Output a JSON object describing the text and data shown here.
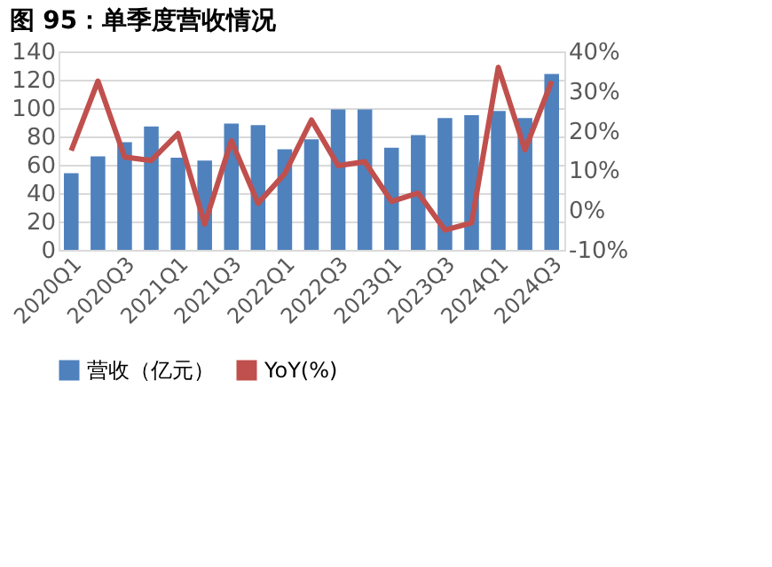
{
  "chart_data": {
    "type": "bar",
    "title": "图 95：单季度营收情况",
    "categories": [
      "2020Q1",
      null,
      "2020Q3",
      null,
      "2021Q1",
      null,
      "2021Q3",
      null,
      "2022Q1",
      null,
      "2022Q3",
      null,
      "2023Q1",
      null,
      "2023Q3",
      null,
      "2024Q1",
      null,
      "2024Q3"
    ],
    "series": [
      {
        "name": "营收（亿元）",
        "color": "#4f81bd",
        "values": [
          54,
          66,
          76,
          87,
          65,
          63,
          89,
          88,
          71,
          78,
          99,
          99,
          72,
          81,
          93,
          95,
          98,
          93,
          124
        ]
      },
      {
        "name": "YoY(%)",
        "type": "line",
        "axis": "y2",
        "color": "#c0504d",
        "values": [
          15,
          32.5,
          13.4,
          12.5,
          19.3,
          -3.5,
          17.5,
          1.7,
          9.2,
          22.7,
          11.2,
          12.2,
          2.2,
          4.3,
          -5,
          -3.2,
          36,
          15.2,
          32.5
        ]
      }
    ],
    "ylim": [
      0,
      140
    ],
    "yticks": [
      0,
      20,
      40,
      60,
      80,
      100,
      120,
      140
    ],
    "y2lim": [
      -10,
      40
    ],
    "y2ticks": [
      {
        "value": -10,
        "label": "-10%"
      },
      {
        "value": 0,
        "label": "0%"
      },
      {
        "value": 10,
        "label": "10%"
      },
      {
        "value": 20,
        "label": "20%"
      },
      {
        "value": 30,
        "label": "30%"
      },
      {
        "value": 40,
        "label": "40%"
      }
    ],
    "grid": "y",
    "legend": "bottom"
  }
}
